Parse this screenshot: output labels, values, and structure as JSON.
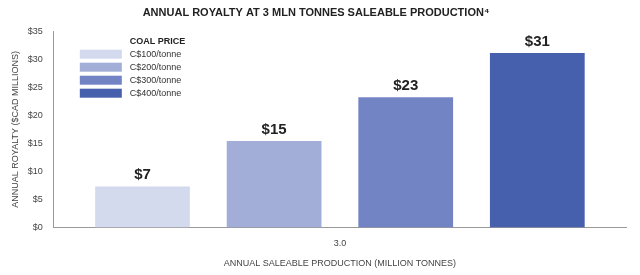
{
  "chart_data": {
    "type": "bar",
    "title": "ANNUAL ROYALTY AT 3 MLN TONNES SALEABLE PRODUCTION⁴",
    "x_label": "ANNUAL SALEABLE PRODUCTION (MILLION TONNES)",
    "y_label": "ANNUAL ROYALTY ($CAD MILLIONS)",
    "legend_title": "COAL PRICE",
    "categories": [
      "3.0"
    ],
    "series": [
      {
        "name": "C$100/tonne",
        "color": "#d4daee",
        "values": [
          7.3
        ],
        "value_labels": [
          "$7"
        ]
      },
      {
        "name": "C$200/tonne",
        "color": "#a2aed8",
        "values": [
          15.4
        ],
        "value_labels": [
          "$15"
        ]
      },
      {
        "name": "C$300/tonne",
        "color": "#7384c4",
        "values": [
          23.2
        ],
        "value_labels": [
          "$23"
        ]
      },
      {
        "name": "C$400/tonne",
        "color": "#4660ae",
        "values": [
          31.1
        ],
        "value_labels": [
          "$31"
        ]
      }
    ],
    "ylim": [
      0,
      35
    ],
    "yticks": [
      {
        "value": 0,
        "label": "$0"
      },
      {
        "value": 5,
        "label": "$5"
      },
      {
        "value": 10,
        "label": "$10"
      },
      {
        "value": 15,
        "label": "$15"
      },
      {
        "value": 20,
        "label": "$20"
      },
      {
        "value": 25,
        "label": "$25"
      },
      {
        "value": 30,
        "label": "$30"
      },
      {
        "value": 35,
        "label": "$35"
      }
    ],
    "grid": false,
    "legend": "upper left",
    "data_labels": true
  }
}
